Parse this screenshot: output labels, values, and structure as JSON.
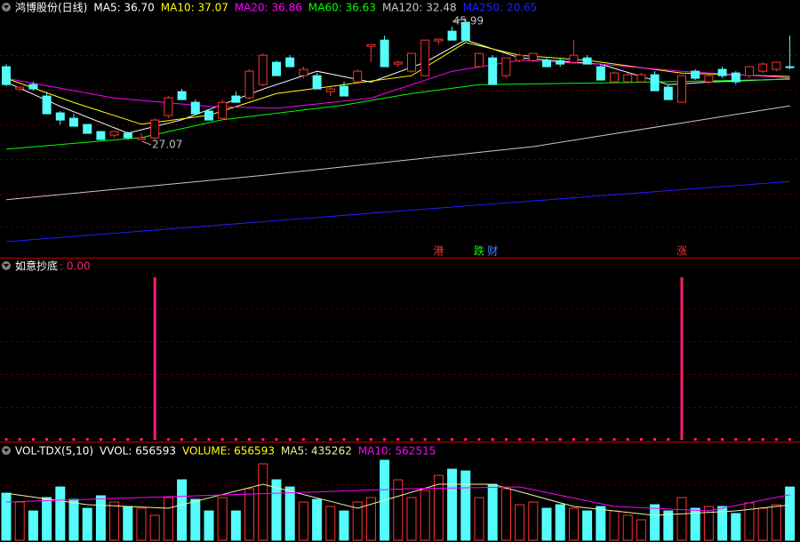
{
  "chart_data": [
    {
      "type": "candlestick",
      "title": "鸿博股份(日线)",
      "up_color": "#ff3232",
      "down_color": "#54fcfc",
      "open": [
        38.61,
        35.13,
        35.82,
        34.02,
        31.38,
        30.54,
        29.57,
        28.46,
        27.9,
        28.18,
        27.21,
        27.48,
        30.96,
        34.71,
        33.04,
        31.66,
        30.54,
        34.02,
        33.74,
        35.82,
        39.3,
        39.99,
        37.21,
        37.21,
        34.71,
        35.55,
        36.24,
        41.8,
        42.77,
        39.02,
        37.91,
        37.21,
        42.64,
        44.17,
        45.56,
        38.61,
        39.99,
        37.21,
        39.58,
        39.58,
        39.58,
        39.58,
        39.3,
        39.99,
        38.61,
        36.24,
        36.24,
        36.24,
        37.35,
        35.41,
        33.04,
        37.91,
        36.24,
        38.19,
        37.63,
        37.21,
        37.91,
        38.19,
        38.61
      ],
      "high": [
        39.02,
        35.55,
        36.24,
        34.71,
        31.66,
        31.24,
        29.57,
        28.46,
        28.46,
        28.46,
        28.18,
        30.54,
        34.02,
        35.13,
        33.46,
        32.0,
        33.46,
        34.71,
        38.19,
        40.69,
        39.58,
        40.41,
        38.61,
        37.63,
        35.41,
        36.24,
        38.19,
        42.08,
        43.47,
        39.58,
        40.69,
        42.77,
        42.91,
        44.86,
        45.99,
        40.69,
        40.41,
        39.99,
        40.69,
        40.69,
        39.99,
        39.99,
        42.77,
        40.41,
        39.02,
        37.91,
        37.63,
        37.63,
        37.91,
        35.82,
        37.35,
        38.19,
        37.35,
        38.61,
        37.91,
        38.61,
        39.3,
        39.3,
        43.47
      ],
      "low": [
        35.55,
        34.71,
        34.85,
        31.24,
        29.57,
        29.29,
        28.18,
        27.21,
        27.48,
        27.21,
        27.07,
        27.21,
        30.54,
        33.46,
        31.24,
        30.26,
        30.26,
        33.04,
        33.46,
        35.55,
        37.21,
        38.61,
        36.8,
        35.13,
        34.02,
        34.02,
        36.24,
        39.3,
        38.61,
        38.47,
        37.63,
        37.21,
        42.08,
        42.77,
        42.5,
        38.47,
        35.82,
        36.8,
        39.3,
        39.3,
        38.61,
        38.61,
        39.02,
        39.02,
        36.52,
        36.24,
        36.24,
        36.24,
        34.85,
        33.46,
        33.04,
        36.52,
        35.82,
        36.8,
        35.82,
        36.8,
        37.63,
        37.91,
        38.19
      ],
      "close": [
        35.82,
        35.41,
        35.13,
        31.24,
        30.26,
        29.29,
        28.18,
        27.21,
        28.46,
        27.48,
        27.48,
        30.26,
        33.74,
        33.46,
        31.24,
        30.26,
        33.04,
        33.04,
        37.91,
        40.41,
        37.21,
        38.61,
        38.19,
        35.13,
        35.13,
        34.02,
        37.91,
        42.08,
        38.61,
        39.3,
        40.69,
        42.77,
        42.91,
        42.77,
        42.77,
        40.69,
        35.82,
        39.99,
        40.41,
        40.69,
        38.61,
        39.02,
        40.41,
        39.02,
        36.52,
        37.63,
        37.35,
        37.35,
        34.85,
        33.46,
        37.21,
        36.8,
        37.21,
        37.21,
        36.24,
        38.61,
        39.02,
        39.3,
        38.47
      ],
      "series": [
        {
          "name": "MA5: 36.70",
          "color": "#ffffff",
          "x": [
            0,
            4,
            9,
            13,
            19,
            23,
            27,
            31,
            34,
            38,
            44,
            49,
            52,
            58
          ],
          "values": [
            36.2,
            32.4,
            28.2,
            30.3,
            35.1,
            37.9,
            36.2,
            39.3,
            42.8,
            40.0,
            39.0,
            35.8,
            36.2,
            36.7
          ]
        },
        {
          "name": "MA10: 37.07",
          "color": "#ffff00",
          "x": [
            0,
            5,
            10,
            15,
            20,
            25,
            30,
            34,
            38,
            43,
            50,
            58
          ],
          "values": [
            36.8,
            33.0,
            29.6,
            31.0,
            34.4,
            35.8,
            37.2,
            42.4,
            40.4,
            39.6,
            37.6,
            37.07
          ]
        },
        {
          "name": "MA20: 36.86",
          "color": "#ff00ff",
          "x": [
            0,
            8,
            15,
            20,
            27,
            33,
            38,
            44,
            50,
            58
          ],
          "values": [
            36.8,
            33.7,
            32.4,
            32.1,
            33.7,
            37.9,
            39.6,
            39.0,
            37.9,
            36.86
          ]
        },
        {
          "name": "MA60: 36.63",
          "color": "#00ff00",
          "x": [
            0,
            10,
            16,
            25,
            30,
            35,
            45,
            58
          ],
          "values": [
            25.7,
            27.5,
            30.3,
            32.6,
            34.4,
            35.8,
            36.1,
            36.63
          ]
        },
        {
          "name": "MA120: 32.48",
          "color": "#c8c8c8",
          "x": [
            0,
            19,
            39,
            58
          ],
          "values": [
            17.8,
            21.6,
            26.1,
            32.48
          ]
        },
        {
          "name": "MA250: 20.65",
          "color": "#2020ff",
          "x": [
            0,
            29,
            58
          ],
          "values": [
            11.22,
            16.0,
            20.65
          ]
        }
      ],
      "annotations": [
        {
          "label": "27.07",
          "x": 10,
          "value": 27.07
        },
        {
          "label": "45.99",
          "x": 34,
          "value": 45.99
        }
      ],
      "events": [
        {
          "label": "港",
          "x": 32,
          "color": "#ff3232"
        },
        {
          "label": "跌",
          "x": 35,
          "color": "#00ff00"
        },
        {
          "label": "财",
          "x": 36,
          "color": "#4080ff"
        },
        {
          "label": "涨",
          "x": 50,
          "color": "#ff3232"
        }
      ]
    },
    {
      "type": "bar",
      "title": "如意抄底",
      "series": [
        {
          "name": ": 0.00",
          "color": "#ff1a7a",
          "values": [
            0,
            0,
            0,
            0,
            0,
            0,
            0,
            0,
            0,
            0,
            0,
            1,
            0,
            0,
            0,
            0,
            0,
            0,
            0,
            0,
            0,
            0,
            0,
            0,
            0,
            0,
            0,
            0,
            0,
            0,
            0,
            0,
            0,
            0,
            0,
            0,
            0,
            0,
            0,
            0,
            0,
            0,
            0,
            0,
            0,
            0,
            0,
            0,
            0,
            0,
            1,
            0,
            0,
            0,
            0,
            0,
            0,
            0,
            0
          ]
        }
      ]
    },
    {
      "type": "bar",
      "title": "VOL-TDX(5,10)",
      "subtitle": "VVOL: 656593",
      "series": [
        {
          "name": "VOLUME: 656593",
          "color": "#ffff00",
          "values": [
            580000,
            471000,
            361000,
            526000,
            657000,
            504000,
            394000,
            548000,
            471000,
            416000,
            394000,
            307000,
            526000,
            745000,
            504000,
            361000,
            526000,
            361000,
            635000,
            942000,
            745000,
            657000,
            471000,
            504000,
            416000,
            361000,
            471000,
            526000,
            986000,
            745000,
            526000,
            613000,
            799000,
            876000,
            854000,
            526000,
            690000,
            635000,
            438000,
            471000,
            394000,
            438000,
            394000,
            361000,
            416000,
            361000,
            307000,
            252000,
            438000,
            361000,
            526000,
            394000,
            416000,
            416000,
            329000,
            460000,
            394000,
            438000,
            656593
          ]
        },
        {
          "name": "MA5: 435262",
          "color": "#f0f0a0",
          "x": [
            0,
            6,
            12,
            19,
            26,
            32,
            36,
            42,
            48,
            54,
            58
          ],
          "values": [
            580000,
            438000,
            394000,
            690000,
            394000,
            690000,
            690000,
            416000,
            307000,
            361000,
            435262
          ]
        },
        {
          "name": "MA10: 562515",
          "color": "#ff00ff",
          "x": [
            0,
            10,
            20,
            30,
            38,
            45,
            52,
            58
          ],
          "values": [
            471000,
            526000,
            580000,
            635000,
            657000,
            416000,
            361000,
            562515
          ]
        }
      ]
    }
  ]
}
